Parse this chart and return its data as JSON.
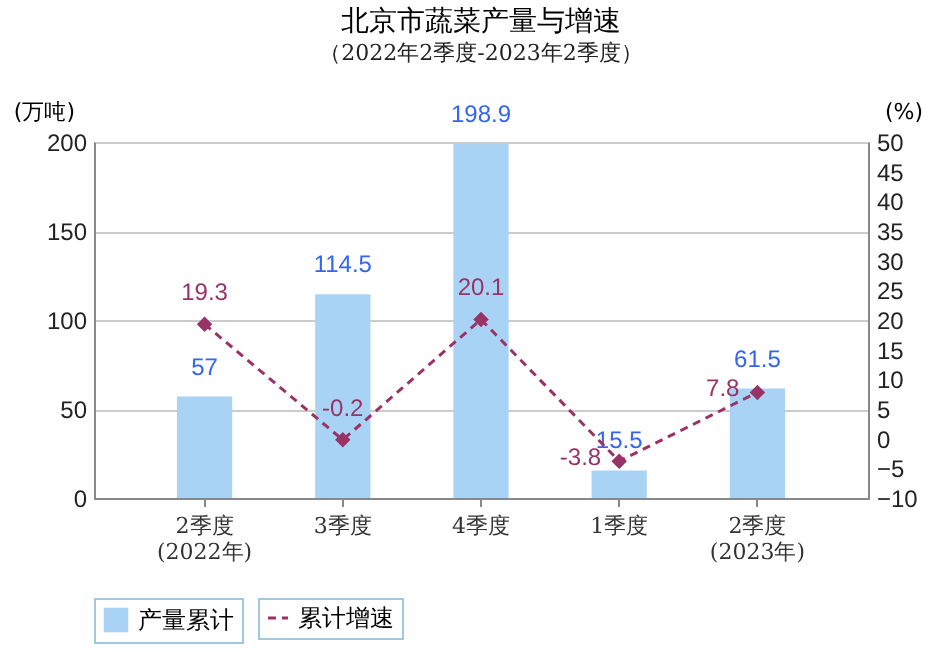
{
  "chart_data": {
    "type": "bar",
    "title": "北京市蔬菜产量与增速",
    "subtitle": "（2022年2季度-2023年2季度）",
    "ylabel": "(万吨)",
    "y2label": "(%)",
    "categories": [
      "2季度\n(2022年)",
      "3季度",
      "4季度",
      "1季度",
      "2季度\n(2023年)"
    ],
    "series": [
      {
        "name": "产量累计",
        "color": "#a9d3f5",
        "values": [
          57,
          114.5,
          198.9,
          15.5,
          61.5
        ]
      },
      {
        "name": "累计增速",
        "type": "line",
        "axis": "y2",
        "color": "#993366",
        "marker": "diamond",
        "line_style": "dashed",
        "values": [
          19.3,
          -0.2,
          20.1,
          -3.8,
          7.8
        ]
      }
    ],
    "ylim": [
      0,
      200
    ],
    "yticks": [
      0,
      50,
      100,
      150,
      200
    ],
    "y2lim": [
      -10,
      50
    ],
    "y2ticks": [
      -10,
      -5,
      0,
      5,
      10,
      15,
      20,
      25,
      30,
      35,
      40,
      45,
      50
    ],
    "data_labels": true,
    "grid": "y",
    "legend": "bottom"
  }
}
